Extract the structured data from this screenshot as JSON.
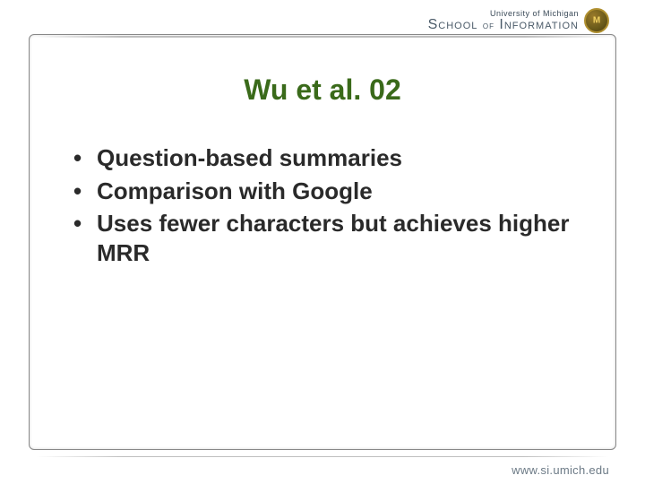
{
  "header": {
    "university": "University of Michigan",
    "school_prefix": "School",
    "school_of": "of",
    "school_suffix": "Information"
  },
  "title": {
    "text": "Wu et al. 02",
    "color": "#3a6a1a"
  },
  "bullets": [
    "Question-based summaries",
    "Comparison with Google",
    "Uses fewer characters but achieves higher MRR"
  ],
  "footer": {
    "url": "www.si.umich.edu"
  }
}
